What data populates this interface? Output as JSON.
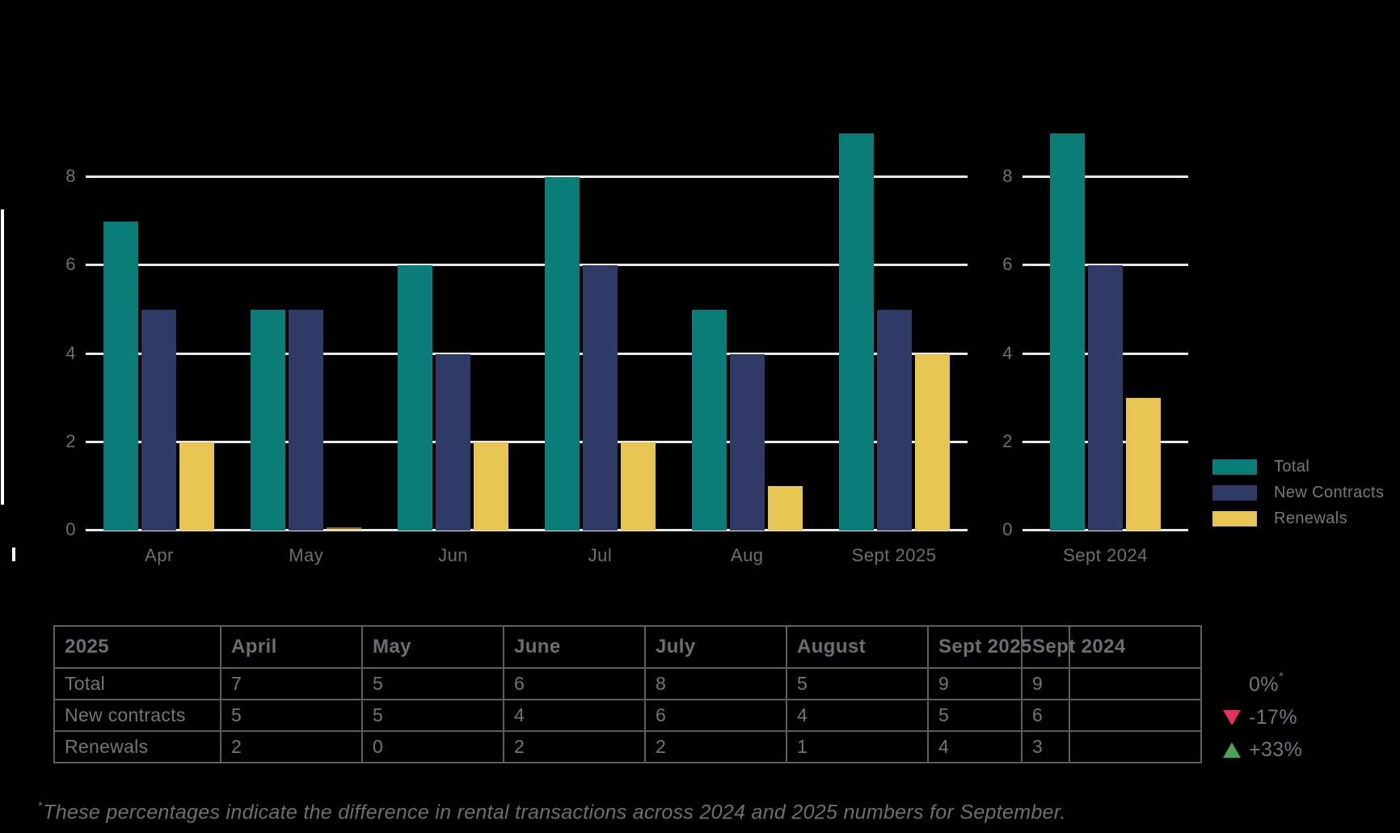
{
  "colors": {
    "background": "#000000",
    "total_teal": "#0a7d78",
    "new_contracts_navy": "#2f3b66",
    "renewals_yellow": "#e8c552",
    "gridline_white": "#e9e9ec",
    "axis_text_gray": "#6f6f6f",
    "table_border_gray": "#5e5e5e",
    "down_triangle_pink": "#e8315e",
    "up_triangle_green": "#4ba453"
  },
  "chart_data": [
    {
      "type": "bar",
      "title": "",
      "categories": [
        "Apr",
        "May",
        "Jun",
        "Jul",
        "Aug",
        "Sept 2025"
      ],
      "series": [
        {
          "name": "Total",
          "color_key": "total_teal",
          "values": [
            7,
            5,
            6,
            8,
            5,
            9
          ]
        },
        {
          "name": "New Contracts",
          "color_key": "new_contracts_navy",
          "values": [
            5,
            5,
            4,
            6,
            4,
            5
          ]
        },
        {
          "name": "Renewals",
          "color_key": "renewals_yellow",
          "values": [
            2,
            0,
            2,
            2,
            1,
            4
          ]
        }
      ],
      "y_ticks": [
        0,
        2,
        4,
        6,
        8
      ],
      "ylim": [
        0,
        9
      ],
      "grid": true,
      "legend_position": "right"
    },
    {
      "type": "bar",
      "title": "",
      "categories": [
        "Sept 2024"
      ],
      "series": [
        {
          "name": "Total",
          "color_key": "total_teal",
          "values": [
            9
          ]
        },
        {
          "name": "New Contracts",
          "color_key": "new_contracts_navy",
          "values": [
            6
          ]
        },
        {
          "name": "Renewals",
          "color_key": "renewals_yellow",
          "values": [
            3
          ]
        }
      ],
      "y_ticks": [
        0,
        2,
        4,
        6,
        8
      ],
      "ylim": [
        0,
        9
      ],
      "grid": true
    }
  ],
  "legend": {
    "items": [
      {
        "label": "Total",
        "color_key": "total_teal"
      },
      {
        "label": "New Contracts",
        "color_key": "new_contracts_navy"
      },
      {
        "label": "Renewals",
        "color_key": "renewals_yellow"
      }
    ]
  },
  "table_2025": {
    "headers": [
      "2025",
      "April",
      "May",
      "June",
      "July",
      "August",
      "Sept 2025"
    ],
    "rows": [
      {
        "label": "Total",
        "values": [
          "7",
          "5",
          "6",
          "8",
          "5",
          "9"
        ]
      },
      {
        "label": "New contracts",
        "values": [
          "5",
          "5",
          "4",
          "6",
          "4",
          "5"
        ]
      },
      {
        "label": "Renewals",
        "values": [
          "2",
          "0",
          "2",
          "2",
          "1",
          "4"
        ]
      }
    ]
  },
  "table_2024": {
    "header": "Sept 2024",
    "values": [
      "9",
      "6",
      "3"
    ]
  },
  "comparison": {
    "items": [
      {
        "value": "0%",
        "superscript": "*",
        "direction": "none"
      },
      {
        "value": "-17%",
        "superscript": "",
        "direction": "down"
      },
      {
        "value": "+33%",
        "superscript": "",
        "direction": "up"
      }
    ]
  },
  "footnote": {
    "superscript": "*",
    "text": "These percentages indicate the difference in rental transactions across 2024 and 2025 numbers for September."
  }
}
